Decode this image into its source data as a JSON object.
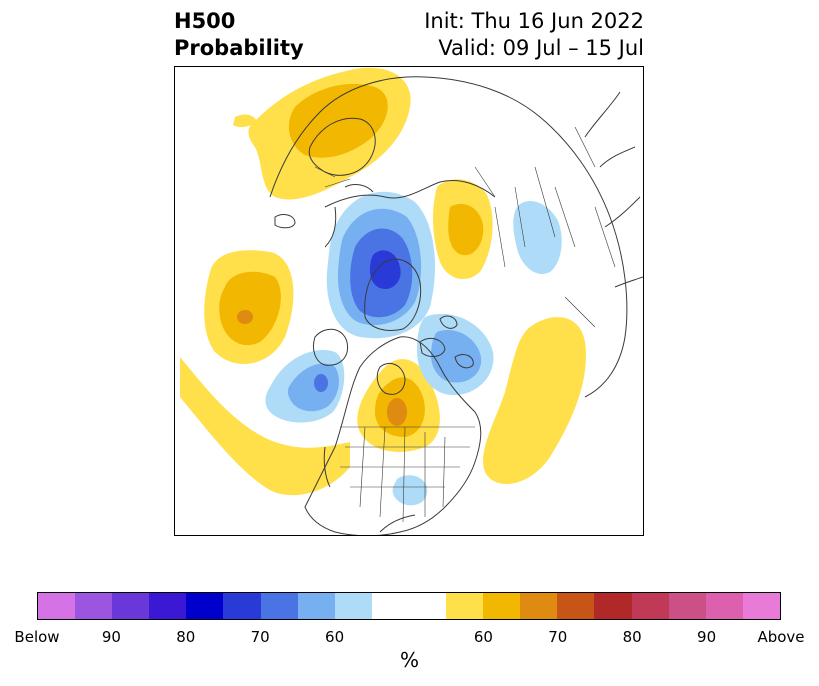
{
  "title": {
    "left_line1": "H500",
    "left_line2": "Probability",
    "right_line1": "Init: Thu 16 Jun 2022",
    "right_line2": "Valid: 09 Jul – 15 Jul"
  },
  "colorbar": {
    "colors": [
      "#d572e6",
      "#9b55e0",
      "#6a38d9",
      "#3a18d4",
      "#0000cc",
      "#2a3ad6",
      "#4a74e4",
      "#77b0f0",
      "#aedcf8",
      "#ffffff",
      "#ffffff",
      "#ffe04a",
      "#f2b700",
      "#df8a10",
      "#c85518",
      "#b02828",
      "#c03a58",
      "#cc4f85",
      "#dc60ad",
      "#e87bd8"
    ],
    "tick_labels": [
      "Below",
      "90",
      "80",
      "70",
      "60",
      "60",
      "70",
      "80",
      "90",
      "Above"
    ],
    "unit_label": "%"
  },
  "map": {
    "layers": [
      "coastlines",
      "country-borders",
      "state-borders",
      "probability-anomaly-shading"
    ],
    "palette": {
      "land_line": "#3a3a3a",
      "above_60": "#ffe04a",
      "above_70": "#f2b700",
      "above_80": "#df8a10",
      "below_60": "#aedcf8",
      "below_70": "#77b0f0",
      "below_80": "#4a74e4",
      "below_90": "#2a3ad6"
    }
  }
}
